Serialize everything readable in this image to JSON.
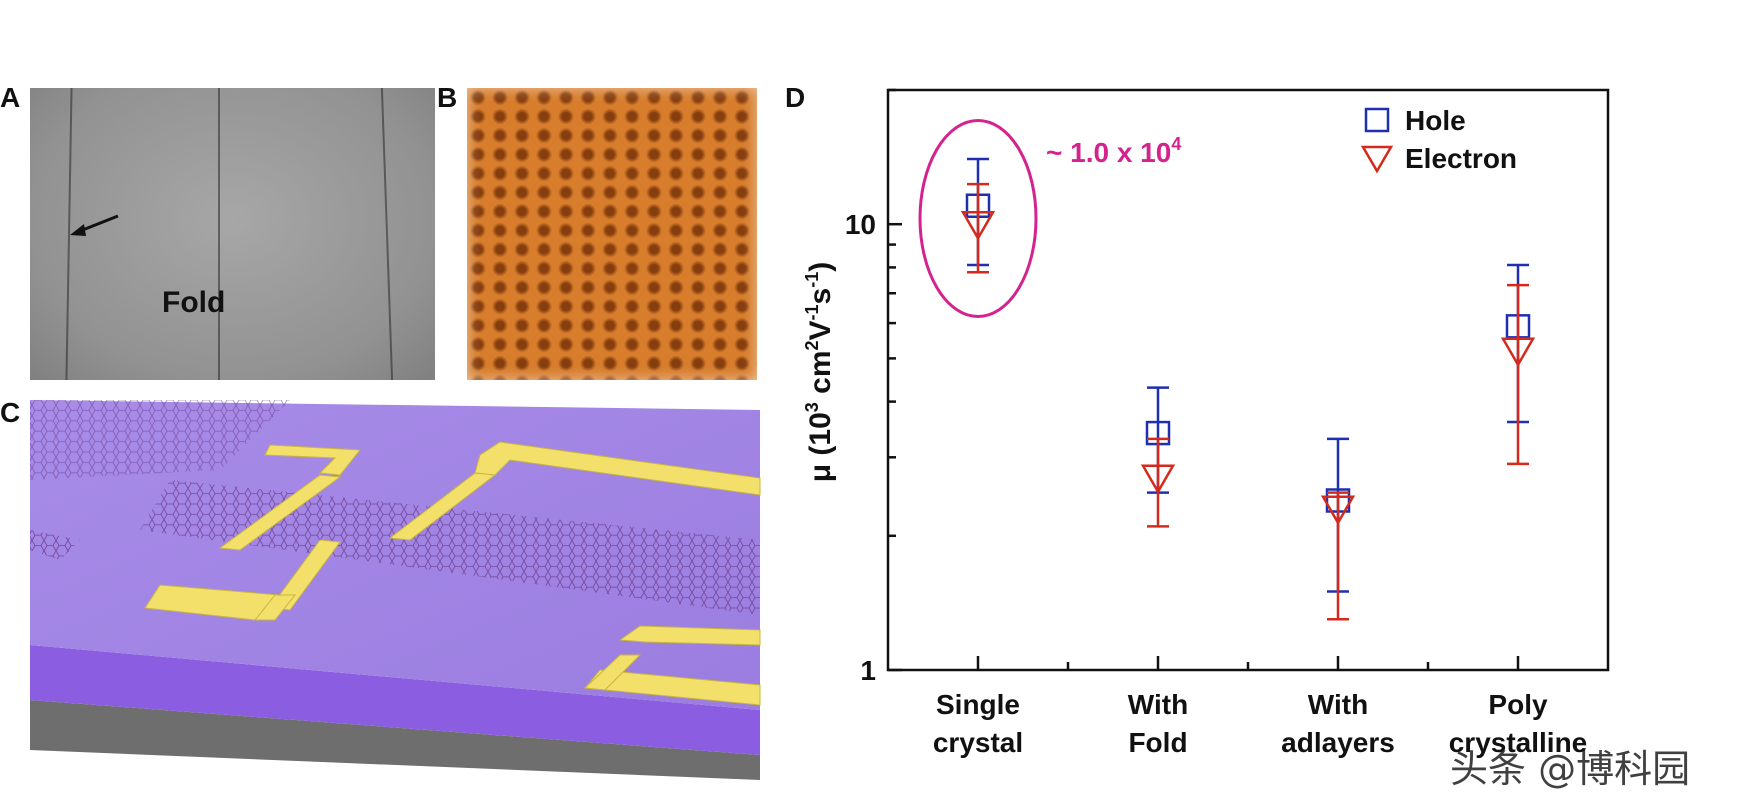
{
  "panel_labels": {
    "a": "A",
    "b": "B",
    "c": "C",
    "d": "D"
  },
  "panel_a": {
    "fold_label": "Fold"
  },
  "annotation": {
    "text": "~ 1.0 x 10",
    "sup": "4",
    "color": "#d4238e"
  },
  "watermark": "头条 @博科园",
  "chart_data": {
    "type": "scatter",
    "title": "",
    "xlabel": "",
    "ylabel": "μ (10³ cm²V⁻¹s⁻¹)",
    "ylabel_parts": {
      "base": "μ (10",
      "s1": "3",
      "mid1": " cm",
      "s2": "2",
      "mid2": "V",
      "s3": "-1",
      "mid3": "s",
      "s4": "-1",
      "end": ")"
    },
    "y_scale": "log",
    "ylim": [
      1,
      20
    ],
    "y_ticks": [
      {
        "value": 1,
        "label": "1"
      },
      {
        "value": 10,
        "label": "10"
      }
    ],
    "categories": [
      {
        "line1": "Single",
        "line2": "crystal"
      },
      {
        "line1": "With",
        "line2": "Fold"
      },
      {
        "line1": "With",
        "line2": "adlayers"
      },
      {
        "line1": "Poly",
        "line2": "crystalline"
      }
    ],
    "legend_position": "top-right",
    "series": [
      {
        "name": "Hole",
        "marker": "square",
        "color": "#1e2fb0",
        "values": [
          11.0,
          3.4,
          2.4,
          5.9
        ],
        "err_low": [
          8.1,
          2.5,
          1.5,
          3.6
        ],
        "err_high": [
          14.0,
          4.3,
          3.3,
          8.1
        ]
      },
      {
        "name": "Electron",
        "marker": "triangle-down",
        "color": "#d42a1e",
        "values": [
          10.0,
          2.7,
          2.3,
          5.2
        ],
        "err_low": [
          7.8,
          2.1,
          1.3,
          2.9
        ],
        "err_high": [
          12.3,
          3.3,
          2.5,
          7.3
        ]
      }
    ]
  }
}
